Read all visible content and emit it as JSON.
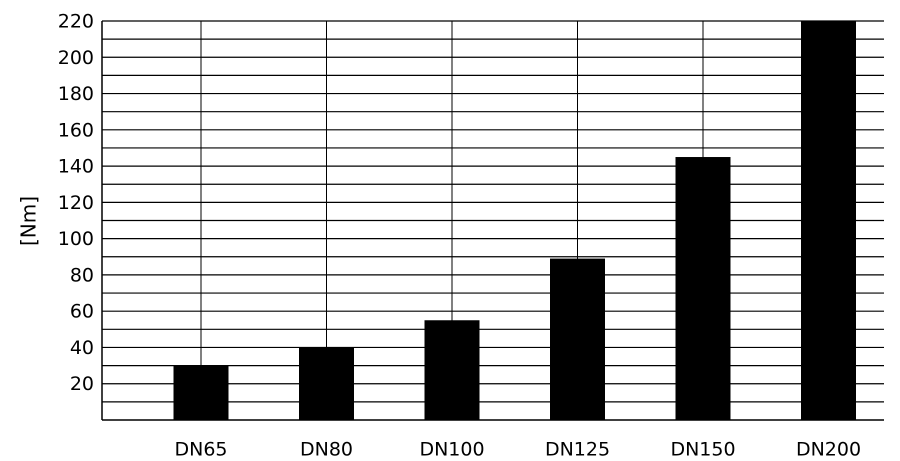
{
  "chart_data": {
    "type": "bar",
    "categories": [
      "DN65",
      "DN80",
      "DN100",
      "DN125",
      "DN150",
      "DN200"
    ],
    "values": [
      30,
      40,
      55,
      89,
      145,
      220
    ],
    "ylabel": "[Nm]",
    "ylim": [
      0,
      220
    ],
    "yticks": [
      20,
      40,
      60,
      80,
      100,
      120,
      140,
      160,
      180,
      200,
      220
    ],
    "grid": true,
    "minor_gridlines": true,
    "bar_color": "#000000",
    "grid_color": "#000000"
  }
}
